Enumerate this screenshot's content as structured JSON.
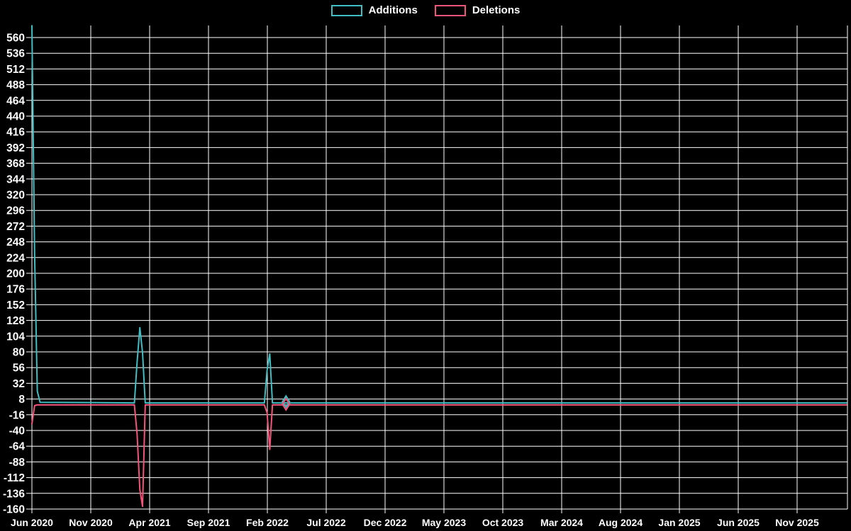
{
  "chart_data": {
    "type": "line",
    "title": "",
    "background": "#000000",
    "grid_color": "#ffffff",
    "text_color": "#ffffff",
    "grid": true,
    "legend_position": "top-center",
    "x_start": "2020-06-01",
    "x_tick_interval_months": 5,
    "x_ticks": [
      "Jun 2020",
      "Nov 2020",
      "Apr 2021",
      "Sep 2021",
      "Feb 2022",
      "Jul 2022",
      "Dec 2022",
      "May 2023",
      "Oct 2023",
      "Mar 2024",
      "Aug 2024",
      "Jan 2025",
      "Jun 2025",
      "Nov 2025"
    ],
    "y_ticks": [
      560,
      536,
      512,
      488,
      464,
      440,
      416,
      392,
      368,
      344,
      320,
      296,
      272,
      248,
      224,
      200,
      176,
      152,
      128,
      104,
      80,
      56,
      32,
      8,
      -16,
      -40,
      -64,
      -88,
      -112,
      -136,
      -160
    ],
    "ylim": [
      -160,
      578
    ],
    "series": [
      {
        "name": "Additions",
        "color": "#3fbec4",
        "points": [
          [
            "2020-06-01",
            578
          ],
          [
            "2020-06-08",
            230
          ],
          [
            "2020-06-15",
            20
          ],
          [
            "2020-06-22",
            3
          ],
          [
            "2021-02-21",
            2
          ],
          [
            "2021-02-28",
            64
          ],
          [
            "2021-03-07",
            117
          ],
          [
            "2021-03-14",
            79
          ],
          [
            "2021-03-21",
            2
          ],
          [
            "2022-01-23",
            2
          ],
          [
            "2022-01-30",
            52
          ],
          [
            "2022-02-06",
            77
          ],
          [
            "2022-02-13",
            2
          ],
          [
            "2026-03-08",
            2
          ]
        ]
      },
      {
        "name": "Deletions",
        "color": "#f4547a",
        "points": [
          [
            "2020-06-01",
            -30
          ],
          [
            "2020-06-08",
            -2
          ],
          [
            "2020-06-15",
            -1
          ],
          [
            "2021-02-21",
            -1
          ],
          [
            "2021-02-28",
            -45
          ],
          [
            "2021-03-07",
            -130
          ],
          [
            "2021-03-14",
            -156
          ],
          [
            "2021-03-21",
            -1
          ],
          [
            "2022-01-23",
            -1
          ],
          [
            "2022-01-30",
            -13
          ],
          [
            "2022-02-06",
            -69
          ],
          [
            "2022-02-13",
            -1
          ],
          [
            "2026-03-08",
            -1
          ]
        ]
      }
    ],
    "markers": [
      {
        "series": "Additions",
        "shape": "diamond",
        "x": "2022-03-20",
        "y": 4
      },
      {
        "series": "Deletions",
        "shape": "diamond",
        "x": "2022-03-20",
        "y": 0
      }
    ]
  }
}
